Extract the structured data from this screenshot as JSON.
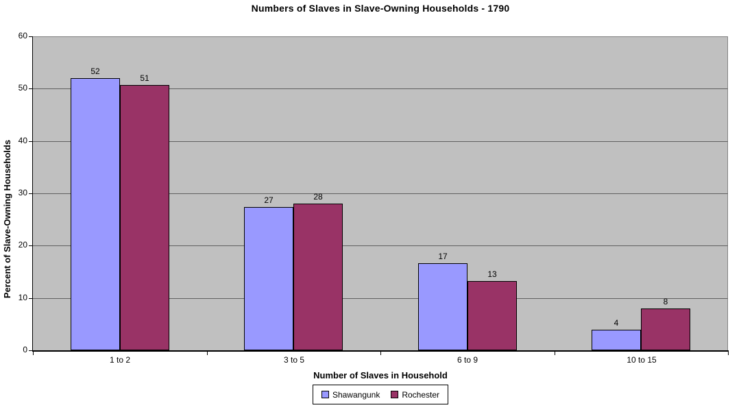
{
  "chart_data": {
    "type": "bar",
    "title": "Numbers of Slaves in Slave-Owning Households - 1790",
    "xlabel": "Number of Slaves in Household",
    "ylabel": "Percent of Slave-Owning Households",
    "categories": [
      "1 to 2",
      "3 to 5",
      "6 to 9",
      "10 to 15"
    ],
    "series": [
      {
        "name": "Shawangunk",
        "color": "#9999FF",
        "values": [
          52,
          27.4,
          16.7,
          3.9
        ],
        "labels": [
          "52",
          "27",
          "17",
          "4"
        ]
      },
      {
        "name": "Rochester",
        "color": "#993366",
        "values": [
          50.7,
          28,
          13.2,
          8
        ],
        "labels": [
          "51",
          "28",
          "13",
          "8"
        ]
      }
    ],
    "ylim": [
      0,
      60
    ],
    "yticks": [
      0,
      10,
      20,
      30,
      40,
      50,
      60
    ],
    "grid": true,
    "legend_position": "bottom",
    "colors": {
      "plot_background": "#C0C0C0",
      "gridline": "#5F5F5F",
      "plot_border": "#808080",
      "axis": "#000000",
      "bar_border": "#000000",
      "text": "#000000",
      "background": "#FFFFFF"
    }
  }
}
